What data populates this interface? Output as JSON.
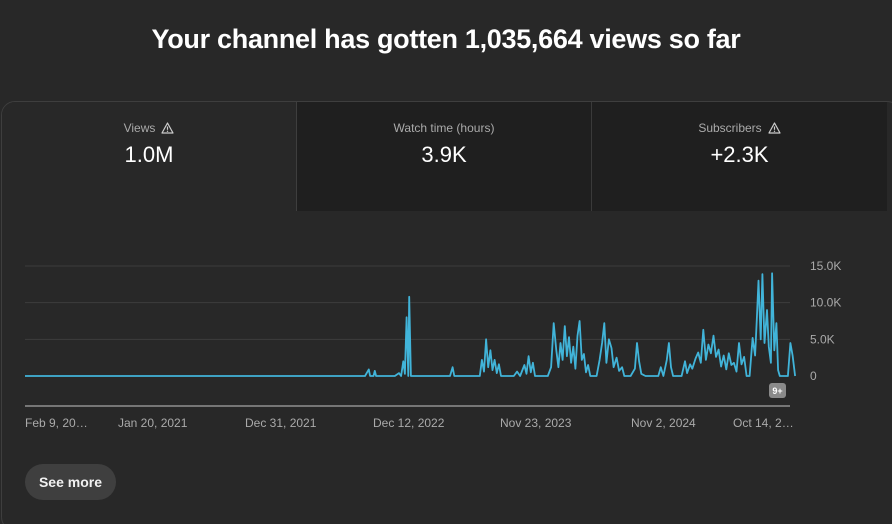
{
  "headline": "Your channel has gotten 1,035,664 views so far",
  "tabs": [
    {
      "label": "Views",
      "value": "1.0M",
      "warning": true
    },
    {
      "label": "Watch time (hours)",
      "value": "3.9K",
      "warning": false
    },
    {
      "label": "Subscribers",
      "value": "+2.3K",
      "warning": true
    }
  ],
  "see_more_label": "See more",
  "badge": "9+",
  "colors": {
    "line": "#41b4d9",
    "grid": "#3d3d3d",
    "axis": "#909090"
  },
  "chart_data": {
    "type": "line",
    "ylim": [
      0,
      15000
    ],
    "yticks": [
      {
        "value": 0,
        "label": "0"
      },
      {
        "value": 5000,
        "label": "5.0K"
      },
      {
        "value": 10000,
        "label": "10.0K"
      },
      {
        "value": 15000,
        "label": "15.0K"
      }
    ],
    "xticks": [
      "Feb 9, 20…",
      "Jan 20, 2021",
      "Dec 31, 2021",
      "Dec 12, 2022",
      "Nov 23, 2023",
      "Nov 2, 2024",
      "Oct 14, 2…"
    ],
    "xlim": [
      0,
      1800
    ],
    "xtick_positions": [
      0,
      346,
      692,
      1038,
      1384,
      1730,
      1880
    ],
    "series": [
      {
        "points": [
          [
            0,
            0
          ],
          [
            800,
            0
          ],
          [
            809,
            900
          ],
          [
            812,
            0
          ],
          [
            820,
            0
          ],
          [
            823,
            700
          ],
          [
            826,
            0
          ],
          [
            870,
            0
          ],
          [
            880,
            400
          ],
          [
            885,
            0
          ],
          [
            890,
            2000
          ],
          [
            894,
            300
          ],
          [
            898,
            8000
          ],
          [
            902,
            0
          ],
          [
            904,
            10800
          ],
          [
            908,
            0
          ],
          [
            930,
            0
          ],
          [
            1000,
            0
          ],
          [
            1006,
            1200
          ],
          [
            1010,
            0
          ],
          [
            1070,
            0
          ],
          [
            1075,
            2200
          ],
          [
            1080,
            600
          ],
          [
            1085,
            5000
          ],
          [
            1090,
            1200
          ],
          [
            1095,
            3500
          ],
          [
            1100,
            800
          ],
          [
            1105,
            2200
          ],
          [
            1110,
            400
          ],
          [
            1115,
            1600
          ],
          [
            1120,
            0
          ],
          [
            1150,
            0
          ],
          [
            1158,
            600
          ],
          [
            1165,
            0
          ],
          [
            1175,
            1500
          ],
          [
            1180,
            300
          ],
          [
            1185,
            2700
          ],
          [
            1190,
            500
          ],
          [
            1195,
            1800
          ],
          [
            1200,
            0
          ],
          [
            1230,
            0
          ],
          [
            1238,
            1200
          ],
          [
            1244,
            7200
          ],
          [
            1250,
            3500
          ],
          [
            1255,
            1200
          ],
          [
            1260,
            4500
          ],
          [
            1265,
            2200
          ],
          [
            1270,
            6800
          ],
          [
            1275,
            2700
          ],
          [
            1280,
            5300
          ],
          [
            1285,
            1800
          ],
          [
            1290,
            4000
          ],
          [
            1295,
            1000
          ],
          [
            1300,
            5500
          ],
          [
            1305,
            7500
          ],
          [
            1310,
            2200
          ],
          [
            1315,
            3000
          ],
          [
            1320,
            500
          ],
          [
            1325,
            1500
          ],
          [
            1330,
            0
          ],
          [
            1345,
            0
          ],
          [
            1352,
            2200
          ],
          [
            1358,
            4500
          ],
          [
            1363,
            7200
          ],
          [
            1368,
            1800
          ],
          [
            1374,
            5000
          ],
          [
            1380,
            3800
          ],
          [
            1385,
            1200
          ],
          [
            1392,
            2500
          ],
          [
            1398,
            700
          ],
          [
            1405,
            1200
          ],
          [
            1410,
            0
          ],
          [
            1425,
            0
          ],
          [
            1435,
            1000
          ],
          [
            1440,
            4500
          ],
          [
            1445,
            2000
          ],
          [
            1450,
            300
          ],
          [
            1460,
            0
          ],
          [
            1490,
            0
          ],
          [
            1496,
            1200
          ],
          [
            1502,
            0
          ],
          [
            1510,
            2200
          ],
          [
            1515,
            4500
          ],
          [
            1520,
            1200
          ],
          [
            1525,
            0
          ],
          [
            1545,
            0
          ],
          [
            1553,
            2000
          ],
          [
            1558,
            400
          ],
          [
            1565,
            1600
          ],
          [
            1570,
            1000
          ],
          [
            1578,
            2400
          ],
          [
            1584,
            3200
          ],
          [
            1590,
            1800
          ],
          [
            1596,
            6300
          ],
          [
            1602,
            2200
          ],
          [
            1608,
            4300
          ],
          [
            1614,
            3100
          ],
          [
            1620,
            5500
          ],
          [
            1626,
            2600
          ],
          [
            1632,
            3600
          ],
          [
            1638,
            1300
          ],
          [
            1644,
            2800
          ],
          [
            1650,
            900
          ],
          [
            1656,
            3100
          ],
          [
            1662,
            1500
          ],
          [
            1668,
            1800
          ],
          [
            1674,
            600
          ],
          [
            1680,
            4500
          ],
          [
            1686,
            1600
          ],
          [
            1692,
            2600
          ],
          [
            1698,
            0
          ],
          [
            1705,
            0
          ],
          [
            1712,
            5200
          ],
          [
            1718,
            2800
          ],
          [
            1722,
            8000
          ],
          [
            1726,
            13000
          ],
          [
            1731,
            5000
          ],
          [
            1735,
            13900
          ],
          [
            1740,
            4500
          ],
          [
            1746,
            9000
          ],
          [
            1750,
            4000
          ],
          [
            1755,
            1800
          ],
          [
            1758,
            14000
          ],
          [
            1763,
            3500
          ],
          [
            1768,
            7200
          ],
          [
            1772,
            800
          ],
          [
            1776,
            0
          ],
          [
            1795,
            0
          ],
          [
            1801,
            4500
          ],
          [
            1806,
            2800
          ],
          [
            1812,
            0
          ]
        ]
      }
    ]
  }
}
